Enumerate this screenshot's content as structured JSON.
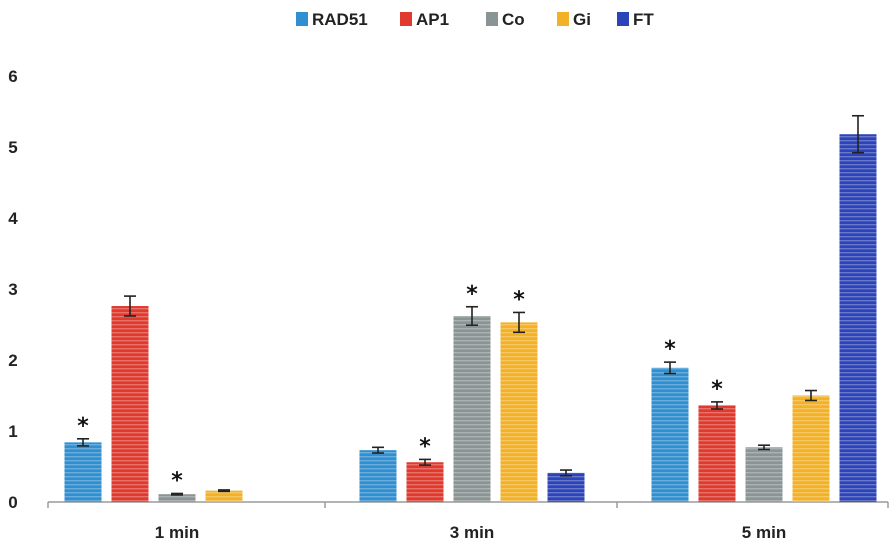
{
  "chart_data": {
    "type": "bar",
    "categories": [
      "1 min",
      "3 min",
      "5 min"
    ],
    "series": [
      {
        "name": "RAD51",
        "color": "#2f8fd0",
        "values": [
          0.84,
          0.73,
          1.89
        ],
        "errors": [
          0.05,
          0.04,
          0.08
        ],
        "significant": [
          true,
          false,
          true
        ]
      },
      {
        "name": "AP1",
        "color": "#e03a2e",
        "values": [
          2.76,
          0.56,
          1.36
        ],
        "errors": [
          0.14,
          0.04,
          0.05
        ],
        "significant": [
          false,
          true,
          true
        ]
      },
      {
        "name": "Co",
        "color": "#8a9494",
        "values": [
          0.11,
          2.62,
          0.77
        ],
        "errors": [
          0.01,
          0.13,
          0.03
        ],
        "significant": [
          true,
          true,
          false
        ]
      },
      {
        "name": "Gi",
        "color": "#f3b127",
        "values": [
          0.16,
          2.53,
          1.5
        ],
        "errors": [
          0.01,
          0.14,
          0.07
        ],
        "significant": [
          false,
          true,
          false
        ]
      },
      {
        "name": "FT",
        "color": "#2d44b8",
        "values": [
          null,
          0.41,
          5.18
        ],
        "errors": [
          null,
          0.04,
          0.26
        ],
        "significant": [
          false,
          false,
          false
        ]
      }
    ],
    "y_ticks": [
      "0",
      "1",
      "2",
      "3",
      "4",
      "5",
      "6"
    ],
    "ylim": [
      0,
      6
    ],
    "significance_marker": "*",
    "legend_position": "top-center",
    "grid": false,
    "xlabel": "",
    "ylabel": "",
    "title": ""
  }
}
